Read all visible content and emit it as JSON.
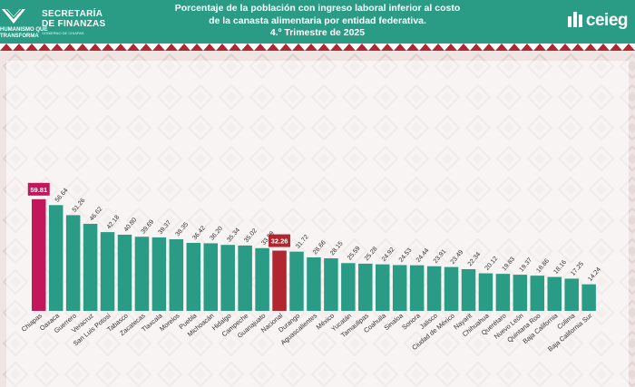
{
  "header": {
    "title_line1": "Porcentaje de la población con ingreso laboral inferior al costo",
    "title_line2": "de la canasta alimentaria por entidad federativa.",
    "title_line3": "4.º Trimestre de 2025",
    "logo_left_line1": "SECRETARÍA",
    "logo_left_line2": "DE FINANZAS",
    "logo_left_sub": "GOBIERNO DE CHIAPAS",
    "logo_left_slogan1": "HUMANISMO QUE",
    "logo_left_slogan2": "TRANSFORMA",
    "logo_right": "ceieg"
  },
  "colors": {
    "primary": "#2a9b85",
    "highlight_chiapas": "#c2185b",
    "highlight_nacional": "#b0272f",
    "background": "#efe6e4"
  },
  "chart_data": {
    "type": "bar",
    "title": "Porcentaje de la población con ingreso laboral inferior al costo de la canasta alimentaria por entidad federativa. 4.º Trimestre de 2025",
    "xlabel": "",
    "ylabel": "",
    "ylim": [
      0,
      65
    ],
    "grid": false,
    "legend": "none",
    "categories": [
      "Chiapas",
      "Oaxaca",
      "Guerrero",
      "Veracruz",
      "San Luis Potosí",
      "Tabasco",
      "Zacatecas",
      "Tlaxcala",
      "Morelos",
      "Puebla",
      "Michoacán",
      "Hidalgo",
      "Campeche",
      "Guanajuato",
      "Nacional",
      "Durango",
      "Aguascalientes",
      "México",
      "Yucatán",
      "Tamaulipas",
      "Coahuila",
      "Sinaloa",
      "Sonora",
      "Jalisco",
      "Ciudad de México",
      "Nayarit",
      "Chihuahua",
      "Querétaro",
      "Nuevo León",
      "Quintana Roo",
      "Baja California",
      "Colima",
      "Baja California Sur"
    ],
    "values": [
      59.81,
      56.64,
      51.26,
      46.62,
      42.18,
      40.8,
      39.69,
      39.37,
      38.35,
      36.42,
      36.2,
      35.34,
      35.02,
      33.59,
      32.26,
      31.72,
      28.66,
      28.15,
      25.59,
      25.28,
      24.92,
      24.53,
      24.44,
      23.91,
      23.49,
      22.34,
      20.12,
      19.83,
      19.37,
      18.86,
      18.16,
      17.25,
      14.24
    ],
    "value_labels": [
      "59.81",
      "56.64",
      "51.26",
      "46.62",
      "42.18",
      "40.80",
      "39.69",
      "39.37",
      "38.35",
      "36.42",
      "36.20",
      "35.34",
      "35.02",
      "33.59",
      "32.26",
      "31.72",
      "28.66",
      "28.15",
      "25.59",
      "25.28",
      "24.92",
      "24.53",
      "24.44",
      "23.91",
      "23.49",
      "22.34",
      "20.12",
      "19.83",
      "19.37",
      "18.86",
      "18.16",
      "17.25",
      "14.24"
    ],
    "highlight": {
      "Chiapas": "#c2185b",
      "Nacional": "#b0272f"
    }
  }
}
